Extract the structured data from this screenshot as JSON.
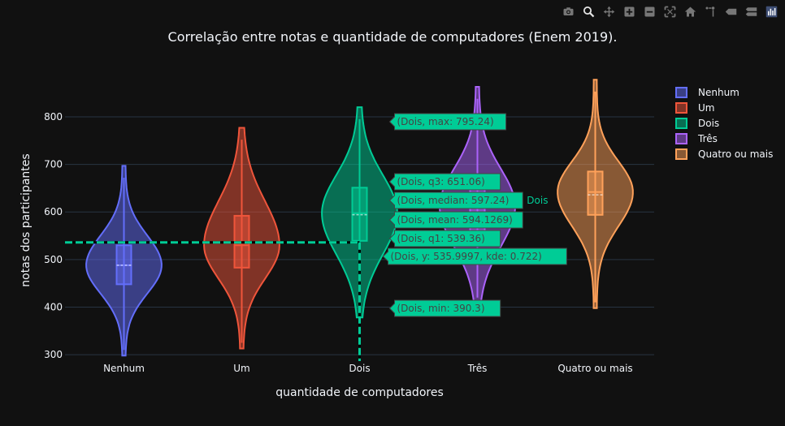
{
  "modebar": {
    "icons": [
      "camera-icon",
      "zoom-icon",
      "pan-icon",
      "zoom-in-icon",
      "zoom-out-icon",
      "autoscale-icon",
      "reset-axes-icon",
      "spike-lines-icon",
      "hover-closest-icon",
      "hover-compare-icon",
      "plotly-logo-icon"
    ],
    "icon_color": "#777777"
  },
  "chart_data": {
    "type": "violin",
    "title": "Correlação entre notas e quantidade de computadores (Enem 2019).",
    "xlabel": "quantidade de computadores",
    "ylabel": "notas dos participantes",
    "categories": [
      "Nenhum",
      "Um",
      "Dois",
      "Três",
      "Quatro ou mais"
    ],
    "ylim": [
      290,
      875
    ],
    "yticks": [
      300,
      400,
      500,
      600,
      700,
      800
    ],
    "grid": true,
    "legend_position": "right",
    "series": [
      {
        "name": "Nenhum",
        "color": "#636efa",
        "min": 310,
        "q1": 448,
        "median": 488,
        "mean": 488,
        "q3": 530,
        "max": 672
      },
      {
        "name": "Um",
        "color": "#EF553B",
        "min": 325,
        "q1": 483,
        "median": 530,
        "mean": 535,
        "q3": 592,
        "max": 752
      },
      {
        "name": "Dois",
        "color": "#00cc96",
        "min": 390.3,
        "q1": 539.36,
        "median": 597.24,
        "mean": 594.1269,
        "q3": 651.06,
        "max": 795.24
      },
      {
        "name": "Três",
        "color": "#ab63fa",
        "min": 420,
        "q1": 555,
        "median": 612,
        "mean": 608,
        "q3": 665,
        "max": 838
      },
      {
        "name": "Quatro ou mais",
        "color": "#FFA15A",
        "min": 410,
        "q1": 594,
        "median": 642,
        "mean": 636,
        "q3": 685,
        "max": 853
      }
    ],
    "hover": {
      "category": "Dois",
      "color": "#00cc96",
      "label": "Dois",
      "spike_y": 535.9997,
      "labels": [
        "(Dois, max: 795.24)",
        "(Dois, q3: 651.06)",
        "(Dois, median: 597.24)",
        "(Dois, mean: 594.1269)",
        "(Dois, q1: 539.36)",
        "(Dois, y: 535.9997, kde: 0.722)",
        "(Dois, min: 390.3)"
      ]
    }
  }
}
